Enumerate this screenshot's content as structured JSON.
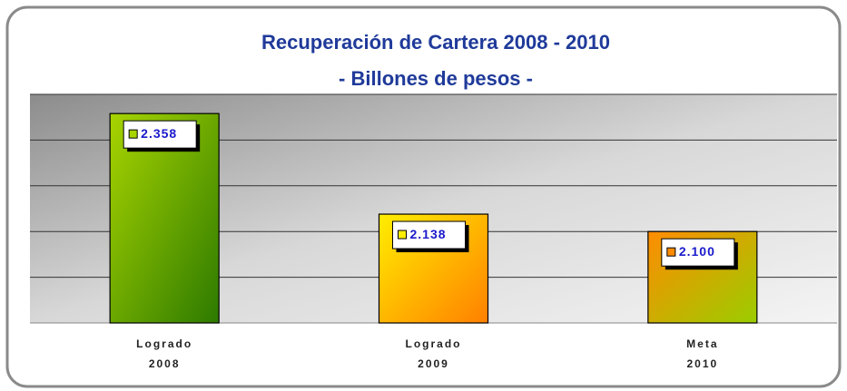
{
  "chart_data": {
    "type": "bar",
    "title": "Recuperación de Cartera 2008 - 2010",
    "subtitle": "- Billones de pesos -",
    "categories": [
      [
        "Logrado",
        "2008"
      ],
      [
        "Logrado",
        "2009"
      ],
      [
        "Meta",
        "2010"
      ]
    ],
    "values": [
      2.358,
      2.138,
      2.1
    ],
    "value_labels": [
      "2.358",
      "2.138",
      "2.100"
    ],
    "colors": [
      [
        "#a8d400",
        "#2d7a00"
      ],
      [
        "#ffee00",
        "#ff8000"
      ],
      [
        "#ff8c00",
        "#9acd00"
      ]
    ],
    "ylim": [
      1.9,
      2.4
    ],
    "yticks": [
      1.9,
      2.0,
      2.1,
      2.2,
      2.3,
      2.4
    ],
    "grid": true
  }
}
